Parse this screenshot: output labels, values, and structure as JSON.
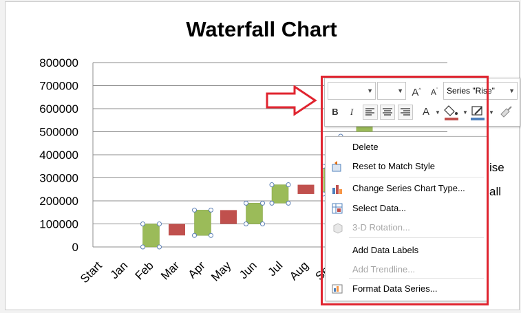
{
  "chart_data": {
    "type": "bar",
    "title": "Waterfall Chart",
    "categories": [
      "Start",
      "Jan",
      "Feb",
      "Mar",
      "Apr",
      "May",
      "Jun",
      "Jul",
      "Aug",
      "Sep"
    ],
    "y_ticks": [
      "0",
      "100000",
      "200000",
      "300000",
      "400000",
      "500000",
      "600000",
      "700000",
      "800000"
    ],
    "ylim": [
      0,
      800000
    ],
    "grid": true,
    "stacked_waterfall": true,
    "series": [
      {
        "name": "Rise",
        "color": "#9bbb59",
        "base": [
          0,
          0,
          0,
          50000,
          0,
          100000,
          190000,
          0,
          230000,
          0
        ],
        "values": [
          0,
          100000,
          0,
          110000,
          0,
          90000,
          80000,
          0,
          120000,
          0
        ]
      },
      {
        "name": "Fall",
        "color": "#c0504d",
        "base": [
          0,
          0,
          50000,
          0,
          100000,
          0,
          0,
          230000,
          0,
          0
        ],
        "values": [
          0,
          0,
          50000,
          0,
          60000,
          0,
          0,
          40000,
          0,
          0
        ]
      }
    ],
    "hidden_rise_bar_top": 550000,
    "legend_partial": [
      "ise",
      "all"
    ]
  },
  "mini_toolbar": {
    "font_name": "",
    "font_size": "",
    "series_select": "Series \"Rise\"",
    "grow_font": "A",
    "shrink_font": "A",
    "bold": "B",
    "italic": "I",
    "font_color": "A",
    "fill_color": "#c0504d",
    "outline_color": "#4f81bd"
  },
  "context_menu": {
    "items": [
      {
        "label": "Delete",
        "disabled": false,
        "icon": "none"
      },
      {
        "label": "Reset to Match Style",
        "disabled": false,
        "icon": "reset-style-icon"
      },
      {
        "label": "Change Series Chart Type...",
        "disabled": false,
        "icon": "chart-type-icon"
      },
      {
        "label": "Select Data...",
        "disabled": false,
        "icon": "select-data-icon"
      },
      {
        "label": "3-D Rotation...",
        "disabled": true,
        "icon": "3d-rotation-icon"
      },
      {
        "label": "Add Data Labels",
        "disabled": false,
        "icon": "none"
      },
      {
        "label": "Add Trendline...",
        "disabled": true,
        "icon": "none"
      },
      {
        "label": "Format Data Series...",
        "disabled": false,
        "icon": "format-series-icon"
      }
    ]
  },
  "annotation": {
    "highlight_color": "#e0242f"
  }
}
